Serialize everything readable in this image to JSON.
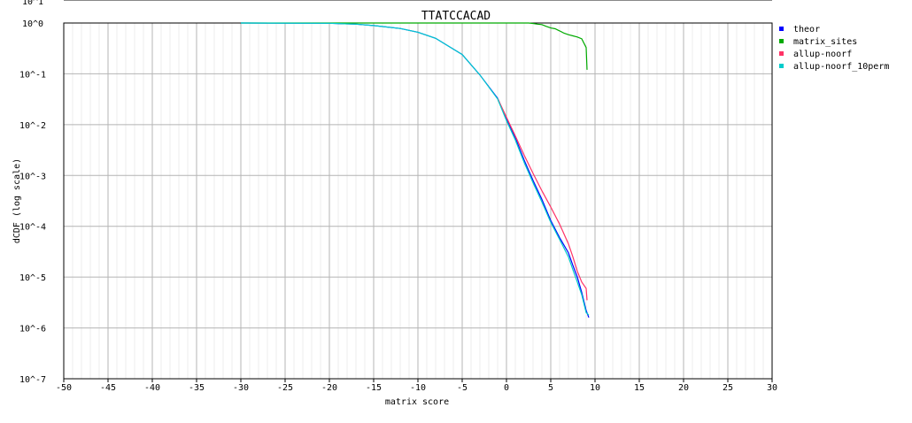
{
  "chart_data": {
    "type": "line",
    "title": "TTATCCACAD",
    "xlabel": "matrix score",
    "ylabel": "dCDF (log scale)",
    "xlim": [
      -50,
      30
    ],
    "ylim_exp": [
      -7,
      0
    ],
    "log_y": true,
    "grid": true,
    "legend_placement": "right",
    "x_ticks": [
      "-50",
      "-45",
      "-40",
      "-35",
      "-30",
      "-25",
      "-20",
      "-15",
      "-10",
      "-5",
      "0",
      "5",
      "10",
      "15",
      "20",
      "25",
      "30"
    ],
    "y_ticks": [
      "10^1",
      "10^0",
      "10^-1",
      "10^-2",
      "10^-3",
      "10^-4",
      "10^-5",
      "10^-6",
      "10^-7"
    ],
    "series": [
      {
        "name": "theor",
        "color": "#0000ff",
        "x": [
          -30,
          -20,
          -17,
          -15,
          -12,
          -10,
          -8,
          -5,
          -3,
          -1,
          0,
          1,
          2,
          3,
          4,
          5,
          6,
          7,
          7.5,
          8,
          8.5,
          9,
          9.3
        ],
        "y": [
          1.0,
          0.99,
          0.95,
          0.89,
          0.78,
          0.66,
          0.5,
          0.24,
          0.095,
          0.033,
          0.013,
          0.0055,
          0.002,
          0.0008,
          0.00034,
          0.00013,
          6e-05,
          3e-05,
          1.7e-05,
          1e-05,
          5e-06,
          2.2e-06,
          1.6e-06
        ]
      },
      {
        "name": "matrix_sites",
        "color": "#00aa00",
        "x": [
          -30,
          -20,
          -10,
          0,
          2.5,
          3,
          3.5,
          4,
          4.5,
          5,
          5.5,
          6,
          6.5,
          7,
          7.5,
          8,
          8.5,
          9,
          9.1
        ],
        "y": [
          1.0,
          1.0,
          1.0,
          1.0,
          1.0,
          0.98,
          0.95,
          0.93,
          0.86,
          0.8,
          0.77,
          0.7,
          0.63,
          0.59,
          0.56,
          0.53,
          0.49,
          0.33,
          0.12
        ]
      },
      {
        "name": "allup-noorf",
        "color": "#ff3366",
        "x": [
          -1,
          0,
          1,
          2,
          3,
          4,
          5,
          6,
          7,
          7.5,
          8,
          8.5,
          9,
          9.1
        ],
        "y": [
          0.033,
          0.014,
          0.006,
          0.0025,
          0.0011,
          0.0005,
          0.00024,
          0.00011,
          4.5e-05,
          2.5e-05,
          1.3e-05,
          8e-06,
          6e-06,
          3.5e-06
        ]
      },
      {
        "name": "allup-noorf_10perm",
        "color": "#00cccc",
        "x": [
          -30,
          -20,
          -17,
          -15,
          -12,
          -10,
          -8,
          -5,
          -3,
          -1,
          0,
          1,
          2,
          3,
          4,
          5,
          6,
          7,
          7.5,
          8,
          8.5,
          9,
          9.3
        ],
        "y": [
          1.0,
          0.99,
          0.95,
          0.89,
          0.78,
          0.66,
          0.5,
          0.24,
          0.095,
          0.032,
          0.012,
          0.005,
          0.0018,
          0.00072,
          0.0003,
          0.00012,
          5.5e-05,
          2.5e-05,
          1.4e-05,
          8e-06,
          4.5e-06,
          2e-06,
          1.8e-06
        ]
      }
    ]
  }
}
